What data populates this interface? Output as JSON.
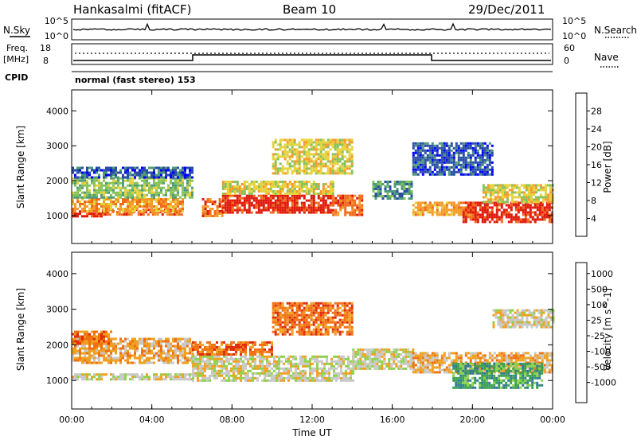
{
  "header": {
    "station": "Hankasalmi (fitACF)",
    "beam": "Beam 10",
    "date": "29/Dec/2011"
  },
  "top_panels": {
    "nsky_label": "N.Sky",
    "nsky_ticks": [
      "10^5",
      "10^0"
    ],
    "nsearch_label": "N.Search",
    "nsearch_ticks": [
      "10^5",
      "10^0"
    ],
    "freq_label": "Freq.",
    "freq_unit": "[MHz]",
    "freq_ticks": [
      "18",
      "8"
    ],
    "nave_label": "Nave",
    "nave_ticks": [
      "60",
      "0"
    ],
    "cpid_label": "CPID",
    "cpid_text": "normal (fast stereo) 153"
  },
  "x_axis": {
    "label": "Time UT",
    "ticks": [
      "00:00",
      "04:00",
      "08:00",
      "12:00",
      "16:00",
      "20:00",
      "00:00"
    ],
    "range_hours": [
      0,
      24
    ]
  },
  "colors": {
    "power": [
      "#0000ff",
      "#2a4ea8",
      "#4f9a7a",
      "#86c25a",
      "#e6d23a",
      "#f59a2a",
      "#f06a1a",
      "#e01a0a"
    ],
    "velocity": [
      "#1f3aa8",
      "#2f7a9a",
      "#3aa050",
      "#8cd24a",
      "#c8c8c8",
      "#f0a020",
      "#f07010",
      "#e02a0a",
      "#ff0000"
    ]
  },
  "chart_data": [
    {
      "type": "heatmap",
      "name": "power",
      "ylabel": "Slant Range [km]",
      "yticks": [
        1000,
        2000,
        3000,
        4000
      ],
      "ylim": [
        200,
        4600
      ],
      "colorbar_label": "Power [dB]",
      "colorbar_ticks": [
        "4",
        "8",
        "12",
        "16",
        "20",
        "24",
        "28"
      ],
      "bands": [
        {
          "t0": 0.0,
          "t1": 1.5,
          "r0": 950,
          "r1": 1150,
          "level": 7
        },
        {
          "t0": 1.5,
          "t1": 5.5,
          "r0": 1000,
          "r1": 1200,
          "level": 6
        },
        {
          "t0": 0.0,
          "t1": 5.5,
          "r0": 1150,
          "r1": 1500,
          "level": 5
        },
        {
          "t0": 0.0,
          "t1": 6.0,
          "r0": 1500,
          "r1": 2100,
          "level": 3
        },
        {
          "t0": 0.0,
          "t1": 6.0,
          "r0": 2100,
          "r1": 2400,
          "level": 1
        },
        {
          "t0": 6.5,
          "t1": 7.5,
          "r0": 1000,
          "r1": 1500,
          "level": 6
        },
        {
          "t0": 7.5,
          "t1": 13.0,
          "r0": 1100,
          "r1": 1600,
          "level": 7
        },
        {
          "t0": 7.5,
          "t1": 13.0,
          "r0": 1600,
          "r1": 2000,
          "level": 4
        },
        {
          "t0": 10.0,
          "t1": 14.0,
          "r0": 2200,
          "r1": 3200,
          "level": 4
        },
        {
          "t0": 13.0,
          "t1": 14.5,
          "r0": 1000,
          "r1": 1600,
          "level": 6
        },
        {
          "t0": 15.0,
          "t1": 17.0,
          "r0": 1500,
          "r1": 2000,
          "level": 2
        },
        {
          "t0": 17.0,
          "t1": 20.0,
          "r0": 1000,
          "r1": 1400,
          "level": 5
        },
        {
          "t0": 19.5,
          "t1": 24.0,
          "r0": 800,
          "r1": 1400,
          "level": 7
        },
        {
          "t0": 20.5,
          "t1": 24.0,
          "r0": 1400,
          "r1": 1900,
          "level": 4
        },
        {
          "t0": 17.0,
          "t1": 21.0,
          "r0": 2200,
          "r1": 3100,
          "level": 1
        }
      ]
    },
    {
      "type": "heatmap",
      "name": "velocity",
      "ylabel": "Slant Range [km]",
      "yticks": [
        1000,
        2000,
        3000,
        4000
      ],
      "ylim": [
        200,
        4600
      ],
      "colorbar_label": "Velocity [m s^-1]",
      "colorbar_ticks": [
        "1000",
        "500",
        "100",
        "25",
        "-25",
        "-100",
        "-500",
        "-1000"
      ],
      "bands": [
        {
          "t0": 0.0,
          "t1": 6.0,
          "r0": 1000,
          "r1": 1200,
          "level": 4
        },
        {
          "t0": 0.0,
          "t1": 6.0,
          "r0": 1500,
          "r1": 2200,
          "level": 5
        },
        {
          "t0": 0.0,
          "t1": 2.0,
          "r0": 2000,
          "r1": 2400,
          "level": 6
        },
        {
          "t0": 6.0,
          "t1": 14.0,
          "r0": 1000,
          "r1": 1700,
          "level": 4
        },
        {
          "t0": 6.0,
          "t1": 10.0,
          "r0": 1700,
          "r1": 2100,
          "level": 6
        },
        {
          "t0": 10.0,
          "t1": 14.0,
          "r0": 2300,
          "r1": 3200,
          "level": 6
        },
        {
          "t0": 14.0,
          "t1": 17.0,
          "r0": 1300,
          "r1": 1900,
          "level": 4
        },
        {
          "t0": 17.0,
          "t1": 24.0,
          "r0": 1200,
          "r1": 1800,
          "level": 5
        },
        {
          "t0": 19.0,
          "t1": 23.5,
          "r0": 800,
          "r1": 1500,
          "level": 2
        },
        {
          "t0": 21.0,
          "t1": 24.0,
          "r0": 2500,
          "r1": 3000,
          "level": 4
        }
      ]
    }
  ]
}
